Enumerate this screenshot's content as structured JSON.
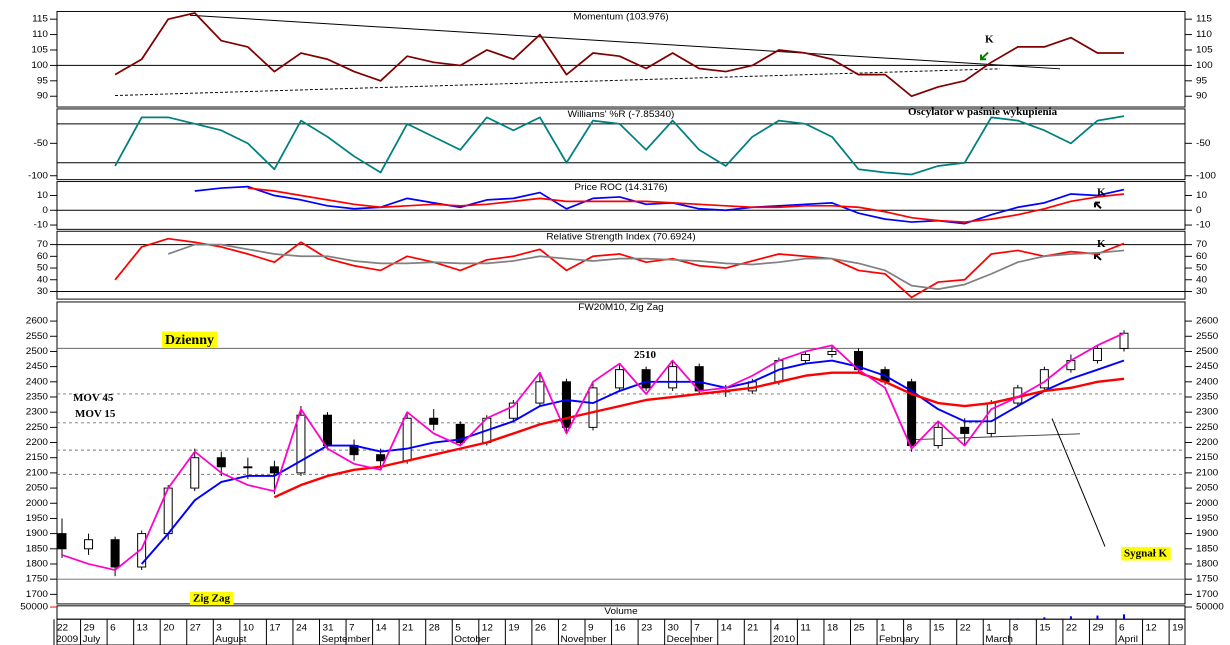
{
  "time_axis": {
    "days": [
      "22",
      "29",
      "6",
      "13",
      "20",
      "27",
      "3",
      "10",
      "17",
      "24",
      "31",
      "7",
      "14",
      "21",
      "28",
      "5",
      "12",
      "19",
      "26",
      "2",
      "9",
      "16",
      "23",
      "30",
      "7",
      "14",
      "21",
      "4",
      "11",
      "18",
      "25",
      "1",
      "8",
      "15",
      "22",
      "1",
      "8",
      "15",
      "22",
      "29",
      "6",
      "12",
      "19"
    ],
    "months": [
      "2009",
      "July",
      null,
      null,
      null,
      null,
      "August",
      null,
      null,
      null,
      "September",
      null,
      null,
      null,
      null,
      "October",
      null,
      null,
      null,
      "November",
      null,
      null,
      null,
      "December",
      null,
      null,
      null,
      "2010",
      null,
      null,
      null,
      "February",
      null,
      null,
      null,
      "March",
      null,
      null,
      null,
      null,
      "April",
      null,
      null
    ]
  },
  "chart_data": [
    {
      "type": "line",
      "title": "Momentum (103.976)",
      "ylim": [
        86.5,
        117.5
      ],
      "yticks": [
        90,
        95,
        100,
        105,
        110,
        115
      ],
      "levels": [
        100
      ],
      "annotations": [
        "K"
      ],
      "series": [
        {
          "name": "Momentum",
          "color": "#800000",
          "values": [
            null,
            null,
            97,
            102,
            115,
            117,
            108,
            106,
            98,
            104,
            102,
            98,
            95,
            103,
            101,
            100,
            105,
            102,
            110,
            97,
            104,
            103,
            99,
            104,
            99,
            98,
            100,
            105,
            104,
            102,
            97,
            97,
            90,
            93,
            95,
            101,
            106,
            106,
            109,
            104,
            104,
            null,
            null
          ]
        }
      ]
    },
    {
      "type": "line",
      "title": "Williams' %R (-7.85340)",
      "ylim": [
        -106,
        3
      ],
      "yticks": [
        -50,
        -100
      ],
      "levels": [
        -20,
        -80
      ],
      "annotations": [
        "Oscylator w paśmie wykupienia"
      ],
      "series": [
        {
          "name": "Williams' %R",
          "color": "#008080",
          "values": [
            null,
            null,
            -85,
            -10,
            -10,
            -20,
            -30,
            -50,
            -90,
            -15,
            -40,
            -70,
            -95,
            -20,
            -40,
            -60,
            -10,
            -30,
            -10,
            -80,
            -15,
            -20,
            -60,
            -15,
            -60,
            -85,
            -40,
            -15,
            -20,
            -40,
            -90,
            -95,
            -98,
            -85,
            -80,
            -10,
            -15,
            -30,
            -50,
            -15,
            -8,
            null,
            null
          ]
        }
      ]
    },
    {
      "type": "line",
      "title": "Price ROC (14.3176)",
      "ylim": [
        -12.9,
        19.4
      ],
      "yticks": [
        10,
        0,
        -10
      ],
      "levels": [
        0
      ],
      "annotations": [
        "K"
      ],
      "series": [
        {
          "name": "ROC",
          "color": "#0000ff",
          "values": [
            null,
            null,
            null,
            null,
            null,
            13,
            15,
            16,
            10,
            7,
            3,
            1,
            2,
            8,
            5,
            2,
            7,
            8,
            12,
            1,
            8,
            9,
            4,
            5,
            1,
            0,
            2,
            3,
            4,
            5,
            -2,
            -6,
            -8,
            -7,
            -9,
            -3,
            2,
            5,
            11,
            10,
            14,
            null,
            null
          ]
        },
        {
          "name": "Signal",
          "color": "#ff0000",
          "values": [
            null,
            null,
            null,
            null,
            null,
            null,
            null,
            15,
            13,
            10,
            7,
            4,
            2,
            3,
            4,
            3,
            4,
            6,
            8,
            6,
            6,
            6,
            6,
            5,
            4,
            3,
            2,
            2,
            3,
            3,
            2,
            -1,
            -5,
            -7,
            -8,
            -6,
            -3,
            1,
            6,
            9,
            11,
            null,
            null
          ]
        }
      ]
    },
    {
      "type": "line",
      "title": "Relative Strength Index (70.6924)",
      "ylim": [
        23.5,
        81.4
      ],
      "yticks": [
        70,
        60,
        50,
        40,
        30
      ],
      "levels": [
        70,
        30
      ],
      "annotations": [
        "K"
      ],
      "series": [
        {
          "name": "RSI",
          "color": "#ff0000",
          "values": [
            null,
            null,
            40,
            68,
            75,
            72,
            68,
            62,
            55,
            72,
            58,
            52,
            48,
            60,
            55,
            48,
            57,
            60,
            66,
            48,
            60,
            62,
            55,
            58,
            52,
            50,
            56,
            62,
            60,
            58,
            48,
            45,
            25,
            38,
            40,
            62,
            65,
            60,
            64,
            62,
            71,
            null,
            null
          ]
        },
        {
          "name": "Average",
          "color": "#808080",
          "values": [
            null,
            null,
            null,
            null,
            62,
            70,
            70,
            66,
            62,
            60,
            60,
            56,
            54,
            54,
            55,
            54,
            54,
            56,
            60,
            58,
            56,
            58,
            58,
            57,
            56,
            54,
            53,
            55,
            58,
            58,
            54,
            48,
            35,
            32,
            36,
            45,
            55,
            60,
            62,
            63,
            65,
            null,
            null
          ]
        }
      ]
    },
    {
      "type": "candlestick",
      "title": "FW20M10, Zig Zag",
      "ylim": [
        1668.5,
        2663
      ],
      "yticks": [
        1700,
        1750,
        1800,
        1850,
        1900,
        1950,
        2000,
        2050,
        2100,
        2150,
        2200,
        2250,
        2300,
        2350,
        2400,
        2450,
        2500,
        2550,
        2600
      ],
      "levels": [
        2510,
        1750
      ],
      "dashed_levels": [
        2360,
        2265,
        2175,
        2095
      ],
      "annotations": [
        "Dzienny",
        "MOV 45",
        "MOV 15",
        "Zig Zag",
        "Sygnał K"
      ],
      "open": [
        1900,
        1850,
        1880,
        1790,
        1900,
        2050,
        2150,
        2120,
        2120,
        2100,
        2290,
        2190,
        2160,
        2140,
        2280,
        2260,
        2200,
        2280,
        2330,
        2400,
        2250,
        2380,
        2440,
        2380,
        2450,
        2370,
        2370,
        2400,
        2470,
        2490,
        2500,
        2440,
        2400,
        2190,
        2250,
        2230,
        2330,
        2380,
        2440,
        2470,
        2510,
        null,
        null
      ],
      "high": [
        1950,
        1900,
        1890,
        1910,
        2060,
        2180,
        2170,
        2150,
        2140,
        2320,
        2300,
        2210,
        2180,
        2300,
        2310,
        2270,
        2290,
        2340,
        2430,
        2410,
        2400,
        2460,
        2450,
        2470,
        2460,
        2390,
        2410,
        2480,
        2500,
        2520,
        2510,
        2450,
        2410,
        2270,
        2280,
        2340,
        2390,
        2450,
        2490,
        2520,
        2570,
        null,
        null
      ],
      "low": [
        1820,
        1830,
        1760,
        1780,
        1880,
        2040,
        2090,
        2080,
        2030,
        2090,
        2180,
        2140,
        2110,
        2130,
        2240,
        2190,
        2190,
        2270,
        2320,
        2230,
        2240,
        2370,
        2370,
        2370,
        2360,
        2350,
        2360,
        2390,
        2460,
        2480,
        2430,
        2390,
        2170,
        2180,
        2190,
        2220,
        2320,
        2370,
        2430,
        2460,
        2500,
        null,
        null
      ],
      "close": [
        1850,
        1880,
        1790,
        1900,
        2050,
        2150,
        2120,
        2120,
        2100,
        2290,
        2190,
        2160,
        2140,
        2280,
        2260,
        2200,
        2280,
        2330,
        2400,
        2250,
        2380,
        2440,
        2380,
        2450,
        2370,
        2370,
        2400,
        2470,
        2490,
        2500,
        2440,
        2400,
        2190,
        2250,
        2230,
        2330,
        2380,
        2440,
        2470,
        2510,
        2560,
        null,
        null
      ],
      "series": [
        {
          "name": "MOV 15",
          "color": "#0000ff",
          "width": 2,
          "values": [
            null,
            null,
            null,
            1800,
            1900,
            2010,
            2070,
            2090,
            2090,
            2140,
            2190,
            2190,
            2170,
            2180,
            2200,
            2210,
            2240,
            2270,
            2320,
            2340,
            2330,
            2370,
            2400,
            2400,
            2400,
            2380,
            2400,
            2440,
            2460,
            2470,
            2450,
            2420,
            2370,
            2310,
            2270,
            2270,
            2320,
            2370,
            2410,
            2440,
            2470,
            null,
            null
          ]
        },
        {
          "name": "MOV 45",
          "color": "#ff0000",
          "width": 2.5,
          "values": [
            null,
            null,
            null,
            null,
            null,
            null,
            null,
            null,
            2020,
            2060,
            2090,
            2110,
            2120,
            2140,
            2160,
            2180,
            2200,
            2230,
            2260,
            2280,
            2300,
            2320,
            2340,
            2350,
            2360,
            2370,
            2380,
            2400,
            2420,
            2430,
            2430,
            2400,
            2360,
            2330,
            2320,
            2330,
            2350,
            2370,
            2380,
            2400,
            2410,
            null,
            null
          ]
        },
        {
          "name": "Zig Zag",
          "color": "#ff00cc",
          "width": 1.8,
          "values": [
            1830,
            1800,
            1780,
            1850,
            2050,
            2170,
            2100,
            2060,
            2040,
            2310,
            2180,
            2130,
            2110,
            2300,
            2230,
            2190,
            2280,
            2320,
            2430,
            2230,
            2400,
            2460,
            2360,
            2470,
            2370,
            2380,
            2420,
            2470,
            2500,
            2520,
            2440,
            2380,
            2180,
            2270,
            2190,
            2310,
            2350,
            2400,
            2470,
            2520,
            2560,
            null,
            null
          ]
        }
      ]
    },
    {
      "type": "bar",
      "title": "Volume",
      "ylim": [
        0,
        55000
      ],
      "yticks": [
        50000
      ],
      "color": "#0000ff",
      "values": [
        null,
        null,
        null,
        null,
        null,
        null,
        null,
        null,
        null,
        null,
        null,
        null,
        null,
        null,
        null,
        null,
        null,
        null,
        null,
        null,
        null,
        null,
        null,
        null,
        null,
        null,
        null,
        null,
        null,
        null,
        null,
        null,
        null,
        null,
        null,
        null,
        3000,
        8000,
        12000,
        15000,
        20000,
        null,
        null
      ]
    }
  ]
}
